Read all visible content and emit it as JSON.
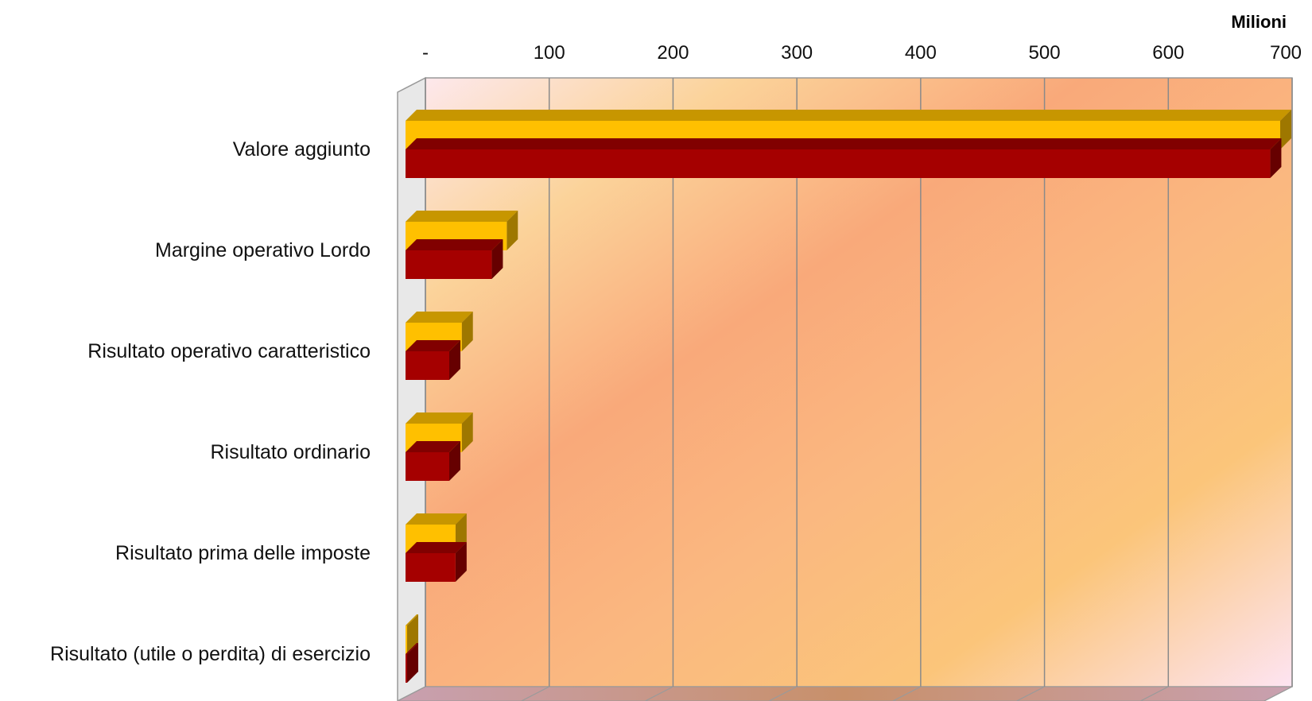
{
  "chart_data": {
    "type": "bar",
    "orientation": "horizontal",
    "style": "3d",
    "unit_label": "Milioni",
    "categories": [
      "Valore aggiunto",
      "Margine operativo Lordo",
      "Risultato operativo caratteristico",
      "Risultato ordinario",
      "Risultato prima delle imposte",
      "Risultato (utile o perdita) di esercizio"
    ],
    "series": [
      {
        "color": "#FFC000",
        "values": [
          700,
          81,
          45,
          45,
          40,
          1
        ]
      },
      {
        "color": "#A50000",
        "values": [
          692,
          69,
          35,
          35,
          40,
          1
        ]
      }
    ],
    "xlim": [
      0,
      700
    ],
    "xticks": [
      0,
      100,
      200,
      300,
      400,
      500,
      600,
      700
    ],
    "xtick_labels": [
      "-",
      "100",
      "200",
      "300",
      "400",
      "500",
      "600",
      "700"
    ],
    "grid": true,
    "legend": "none"
  }
}
